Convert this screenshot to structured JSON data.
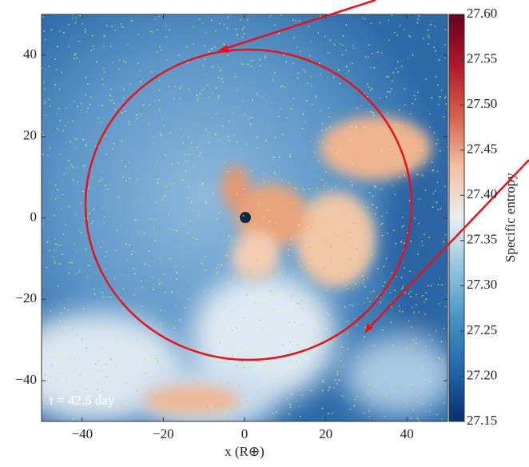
{
  "chart_data": {
    "type": "heatmap",
    "xlabel": "x (R⊕)",
    "annotation": "t = 42.5 day",
    "xlim": [
      -50,
      50
    ],
    "ylim": [
      -50,
      50
    ],
    "xticks": [
      {
        "value": -40,
        "label": "−40"
      },
      {
        "value": -20,
        "label": "−20"
      },
      0,
      20,
      40
    ],
    "yticks": [
      {
        "value": -40,
        "label": "−40"
      },
      {
        "value": -20,
        "label": "−20"
      },
      0,
      20,
      40
    ],
    "colorbar": {
      "label": "Specific entropy",
      "lim": [
        27.15,
        27.6
      ],
      "ticks": [
        27.15,
        {
          "value": 27.2,
          "label": "27.20"
        },
        27.25,
        {
          "value": 27.3,
          "label": "27.30"
        },
        27.35,
        {
          "value": 27.4,
          "label": "27.40"
        },
        27.45,
        {
          "value": 27.5,
          "label": "27.50"
        },
        27.55,
        {
          "value": 27.6,
          "label": "27.60"
        }
      ],
      "colormap": [
        "#08306b",
        "#2166ac",
        "#4393c3",
        "#92c5de",
        "#e8eef2",
        "#f4c0a0",
        "#d6604d",
        "#b2182b",
        "#67001f"
      ]
    }
  }
}
